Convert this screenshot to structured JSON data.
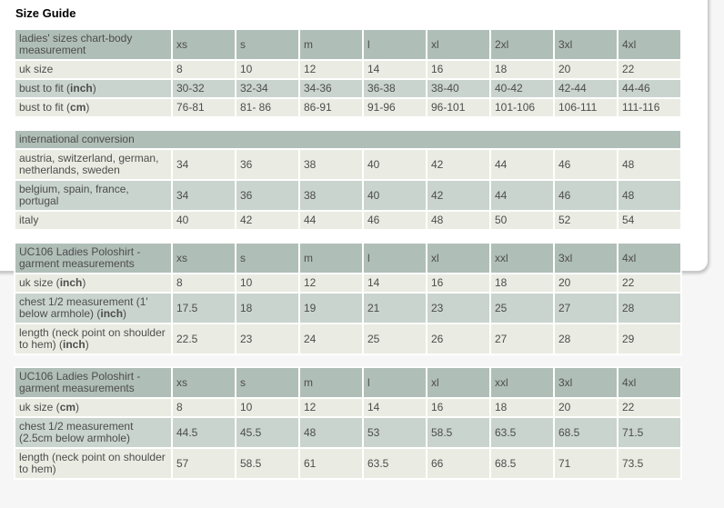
{
  "page": {
    "title": "Size Guide"
  },
  "colors": {
    "page_background": "#f6f6f6",
    "panel_background": "#ffffff",
    "panel_border": "#c9c9c9",
    "header_cell_background": "#b0beb8",
    "row_light_background": "#eaebe2",
    "row_medium_background": "#c9d4ce",
    "cell_text": "#4d4d4d",
    "title_text": "#000000"
  },
  "tables": [
    {
      "name": "ladies-sizes-body-measurement",
      "header": {
        "label": "ladies' sizes chart-body measurement",
        "columns": [
          "xs",
          "s",
          "m",
          "l",
          "xl",
          "2xl",
          "3xl",
          "4xl"
        ]
      },
      "rows": [
        {
          "pre": "uk size",
          "bold": "",
          "post": "",
          "shade": "light",
          "values": [
            "8",
            "10",
            "12",
            "14",
            "16",
            "18",
            "20",
            "22"
          ]
        },
        {
          "pre": "bust to fit (",
          "bold": "inch",
          "post": ")",
          "shade": "medium",
          "values": [
            "30-32",
            "32-34",
            "34-36",
            "36-38",
            "38-40",
            "40-42",
            "42-44",
            "44-46"
          ]
        },
        {
          "pre": "bust to fit (",
          "bold": "cm",
          "post": ")",
          "shade": "light",
          "values": [
            "76-81",
            "81- 86",
            "86-91",
            "91-96",
            "96-101",
            "101-106",
            "106-111",
            "111-116"
          ]
        }
      ]
    },
    {
      "name": "international-conversion",
      "header": {
        "label": "international conversion",
        "full_width": true
      },
      "rows": [
        {
          "pre": "austria, switzerland, german, netherlands, sweden",
          "bold": "",
          "post": "",
          "shade": "light",
          "values": [
            "34",
            "36",
            "38",
            "40",
            "42",
            "44",
            "46",
            "48"
          ]
        },
        {
          "pre": "belgium, spain, france, portugal",
          "bold": "",
          "post": "",
          "shade": "medium",
          "values": [
            "34",
            "36",
            "38",
            "40",
            "42",
            "44",
            "46",
            "48"
          ]
        },
        {
          "pre": "italy",
          "bold": "",
          "post": "",
          "shade": "light",
          "values": [
            "40",
            "42",
            "44",
            "46",
            "48",
            "50",
            "52",
            "54"
          ]
        }
      ]
    },
    {
      "name": "uc106-poloshirt-garment-inch",
      "header": {
        "label": "UC106 Ladies Poloshirt - garment measurements",
        "columns": [
          "xs",
          "s",
          "m",
          "l",
          "xl",
          "xxl",
          "3xl",
          "4xl"
        ]
      },
      "rows": [
        {
          "pre": "uk size (",
          "bold": "inch",
          "post": ")",
          "shade": "light",
          "values": [
            "8",
            "10",
            "12",
            "14",
            "16",
            "18",
            "20",
            "22"
          ]
        },
        {
          "pre": "chest 1/2 measurement (1' below armhole) (",
          "bold": "inch",
          "post": ")",
          "shade": "medium",
          "values": [
            "17.5",
            "18",
            "19",
            "21",
            "23",
            "25",
            "27",
            "28"
          ]
        },
        {
          "pre": "length (neck point on shoulder to hem) (",
          "bold": "inch",
          "post": ")",
          "shade": "light",
          "values": [
            "22.5",
            "23",
            "24",
            "25",
            "26",
            "27",
            "28",
            "29"
          ]
        }
      ]
    },
    {
      "name": "uc106-poloshirt-garment-cm",
      "header": {
        "label": "UC106 Ladies Poloshirt - garment measurements",
        "columns": [
          "xs",
          "s",
          "m",
          "l",
          "xl",
          "xxl",
          "3xl",
          "4xl"
        ]
      },
      "rows": [
        {
          "pre": "uk size (",
          "bold": "cm",
          "post": ")",
          "shade": "light",
          "values": [
            "8",
            "10",
            "12",
            "14",
            "16",
            "18",
            "20",
            "22"
          ]
        },
        {
          "pre": "chest 1/2 measurement (2.5cm below armhole)",
          "bold": "",
          "post": "",
          "shade": "medium",
          "values": [
            "44.5",
            "45.5",
            "48",
            "53",
            "58.5",
            "63.5",
            "68.5",
            "71.5"
          ]
        },
        {
          "pre": "length (neck point on shoulder to hem)",
          "bold": "",
          "post": "",
          "shade": "light",
          "values": [
            "57",
            "58.5",
            "61",
            "63.5",
            "66",
            "68.5",
            "71",
            "73.5"
          ]
        }
      ]
    }
  ]
}
